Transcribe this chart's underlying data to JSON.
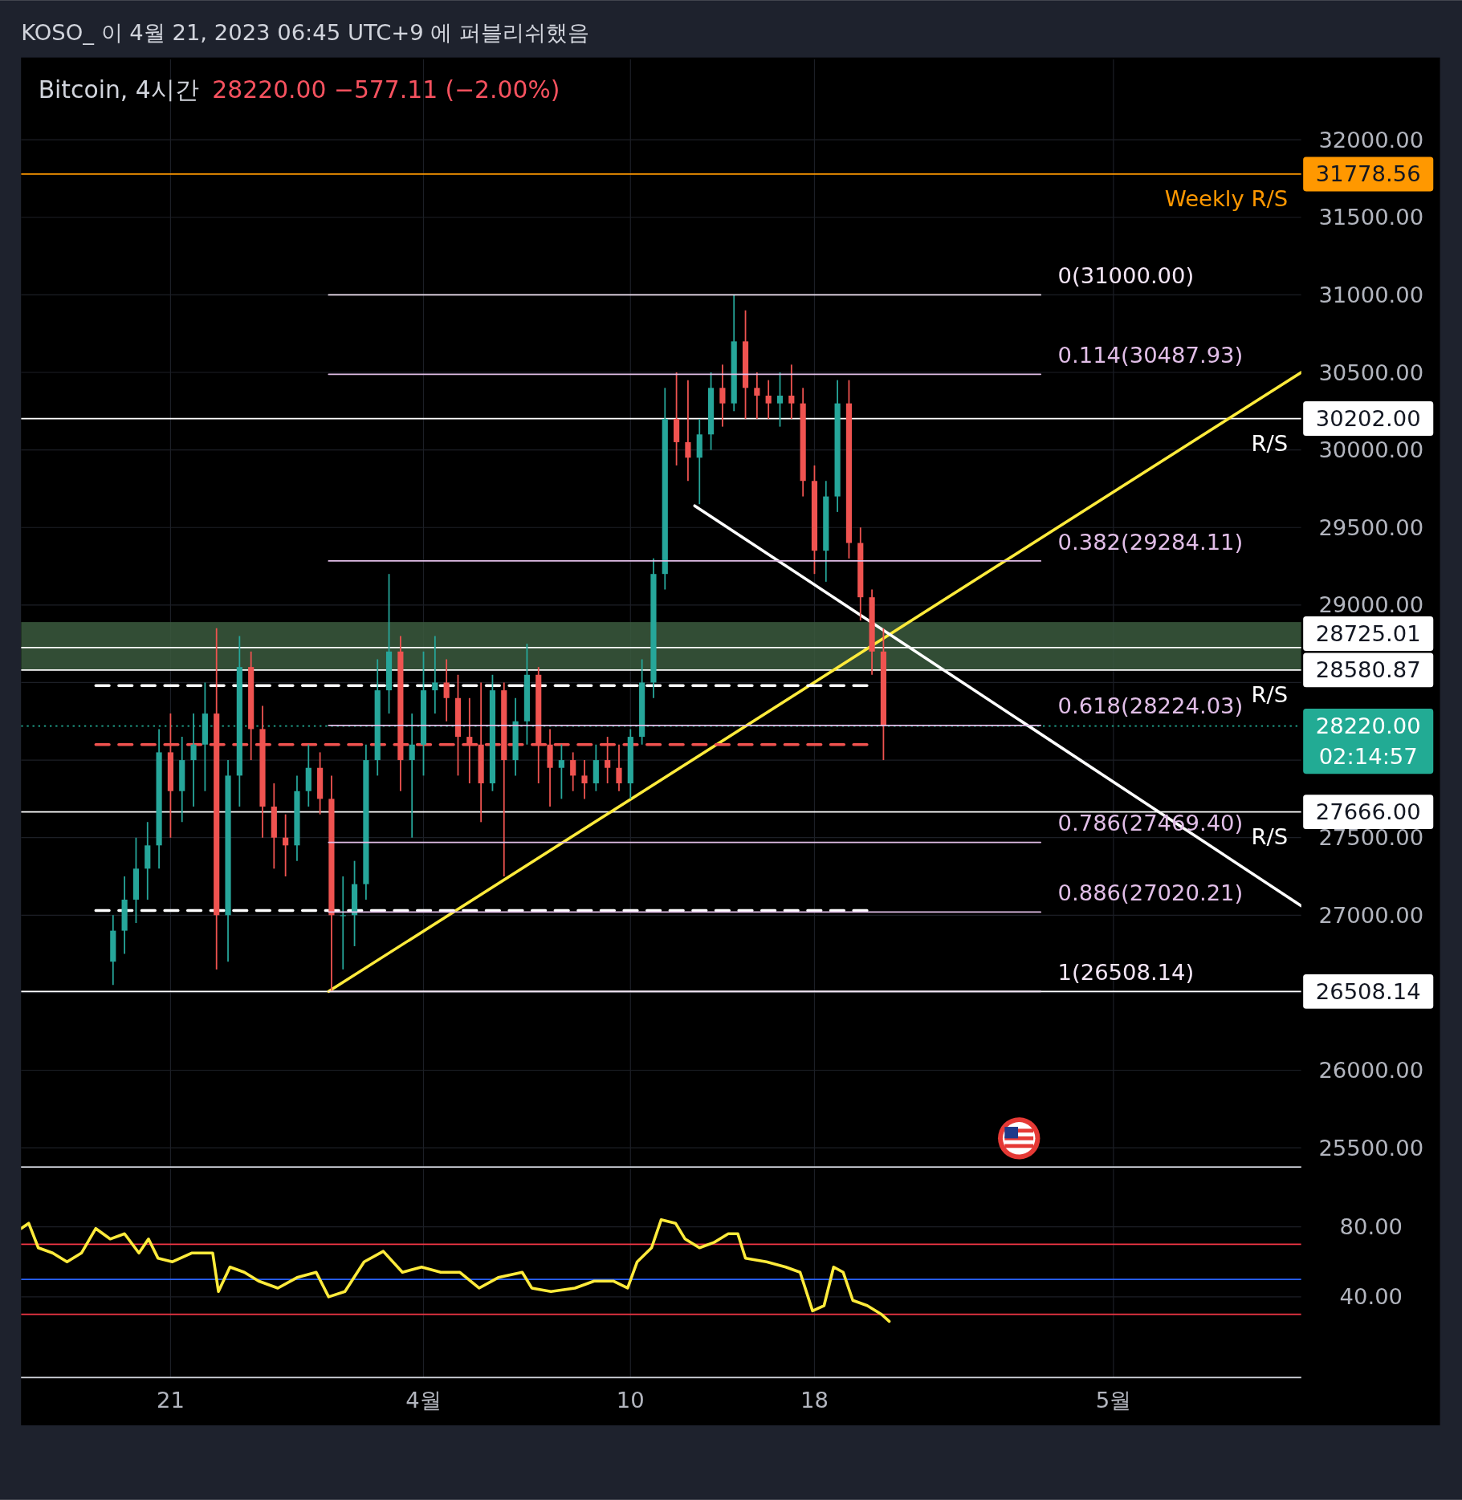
{
  "chart_data": [
    {
      "type": "candlestick",
      "title": "Bitcoin, 4시간",
      "subtitle": "28220.00  −577.11 (−2.00%)",
      "annotations": [
        "KOSO_ 이 4월 21, 2023 06:45 UTC+9 에 퍼블리쉬했음",
        {
          "text": "Weekly R/S",
          "x": "2023-05-08T14:00",
          "y": 31778.56
        },
        {
          "text": "R/S",
          "x": "2023-05-08T14:00",
          "y": 30202
        },
        {
          "text": "R/S",
          "x": "2023-05-08T14:00",
          "y": 28580.87
        },
        {
          "text": "R/S",
          "x": "2023-05-08T14:00",
          "y": 27666
        },
        "02:14:57"
      ],
      "x": [
        "2023-03-18T12:00",
        "2023-03-19T00:00",
        "2023-03-19T12:00",
        "2023-03-20T00:00",
        "2023-03-20T12:00",
        "2023-03-21T00:00",
        "2023-03-21T12:00",
        "2023-03-22T00:00",
        "2023-03-22T12:00",
        "2023-03-23T00:00",
        "2023-03-23T12:00",
        "2023-03-24T00:00",
        "2023-03-24T12:00",
        "2023-03-25T00:00",
        "2023-03-25T12:00",
        "2023-03-26T00:00",
        "2023-03-26T12:00",
        "2023-03-27T00:00",
        "2023-03-27T12:00",
        "2023-03-28T00:00",
        "2023-03-28T12:00",
        "2023-03-29T00:00",
        "2023-03-29T12:00",
        "2023-03-30T00:00",
        "2023-03-30T12:00",
        "2023-03-31T00:00",
        "2023-03-31T12:00",
        "2023-04-01T00:00",
        "2023-04-01T12:00",
        "2023-04-02T00:00",
        "2023-04-02T12:00",
        "2023-04-03T00:00",
        "2023-04-03T12:00",
        "2023-04-04T00:00",
        "2023-04-04T12:00",
        "2023-04-05T00:00",
        "2023-04-05T12:00",
        "2023-04-06T00:00",
        "2023-04-06T12:00",
        "2023-04-07T00:00",
        "2023-04-07T12:00",
        "2023-04-08T00:00",
        "2023-04-08T12:00",
        "2023-04-09T00:00",
        "2023-04-09T12:00",
        "2023-04-10T00:00",
        "2023-04-10T12:00",
        "2023-04-11T00:00",
        "2023-04-11T12:00",
        "2023-04-12T00:00",
        "2023-04-12T12:00",
        "2023-04-13T00:00",
        "2023-04-13T12:00",
        "2023-04-14T00:00",
        "2023-04-14T12:00",
        "2023-04-15T00:00",
        "2023-04-15T12:00",
        "2023-04-16T00:00",
        "2023-04-16T12:00",
        "2023-04-17T00:00",
        "2023-04-17T12:00",
        "2023-04-18T00:00",
        "2023-04-18T12:00",
        "2023-04-19T00:00",
        "2023-04-19T12:00",
        "2023-04-20T00:00",
        "2023-04-20T12:00",
        "2023-04-21T00:00"
      ],
      "ohlc": [
        [
          26700,
          27000,
          26550,
          26900
        ],
        [
          26900,
          27250,
          26750,
          27100
        ],
        [
          27100,
          27500,
          26950,
          27300
        ],
        [
          27300,
          27600,
          27100,
          27450
        ],
        [
          27450,
          28200,
          27300,
          28050
        ],
        [
          28050,
          28300,
          27500,
          27800
        ],
        [
          27800,
          28150,
          27600,
          28000
        ],
        [
          28000,
          28300,
          27700,
          28100
        ],
        [
          28100,
          28500,
          27800,
          28300
        ],
        [
          28300,
          28850,
          26650,
          27000
        ],
        [
          27000,
          28000,
          26700,
          27900
        ],
        [
          27900,
          28800,
          27700,
          28600
        ],
        [
          28600,
          28700,
          28000,
          28200
        ],
        [
          28200,
          28350,
          27500,
          27700
        ],
        [
          27700,
          27850,
          27300,
          27500
        ],
        [
          27500,
          27650,
          27250,
          27450
        ],
        [
          27450,
          27900,
          27350,
          27800
        ],
        [
          27800,
          28100,
          27700,
          27950
        ],
        [
          27950,
          28050,
          27650,
          27750
        ],
        [
          27750,
          27900,
          26508,
          27000
        ],
        [
          27000,
          27250,
          26650,
          27000
        ],
        [
          27000,
          27350,
          26800,
          27200
        ],
        [
          27200,
          28100,
          27100,
          28000
        ],
        [
          28000,
          28650,
          27900,
          28450
        ],
        [
          28450,
          29200,
          28300,
          28700
        ],
        [
          28700,
          28800,
          27800,
          28000
        ],
        [
          28000,
          28300,
          27500,
          28100
        ],
        [
          28100,
          28700,
          27900,
          28450
        ],
        [
          28450,
          28800,
          28300,
          28500
        ],
        [
          28500,
          28650,
          28250,
          28400
        ],
        [
          28400,
          28550,
          27900,
          28150
        ],
        [
          28150,
          28400,
          27850,
          28100
        ],
        [
          28100,
          28500,
          27600,
          27850
        ],
        [
          27850,
          28550,
          27800,
          28450
        ],
        [
          28450,
          28500,
          27250,
          28000
        ],
        [
          28000,
          28400,
          27900,
          28250
        ],
        [
          28250,
          28750,
          28100,
          28550
        ],
        [
          28550,
          28600,
          27850,
          28100
        ],
        [
          28100,
          28200,
          27700,
          27950
        ],
        [
          27950,
          28100,
          27750,
          28000
        ],
        [
          28000,
          28050,
          27800,
          27900
        ],
        [
          27900,
          28000,
          27750,
          27850
        ],
        [
          27850,
          28100,
          27800,
          28000
        ],
        [
          28000,
          28150,
          27850,
          27950
        ],
        [
          27950,
          28100,
          27800,
          27850
        ],
        [
          27850,
          28200,
          27750,
          28150
        ],
        [
          28150,
          28650,
          28100,
          28500
        ],
        [
          28500,
          29300,
          28400,
          29200
        ],
        [
          29200,
          30400,
          29100,
          30200
        ],
        [
          30200,
          30500,
          29900,
          30050
        ],
        [
          30050,
          30450,
          29800,
          29950
        ],
        [
          29950,
          30200,
          29650,
          30100
        ],
        [
          30100,
          30500,
          30000,
          30400
        ],
        [
          30400,
          30550,
          30150,
          30300
        ],
        [
          30300,
          31000,
          30250,
          30700
        ],
        [
          30700,
          30900,
          30200,
          30400
        ],
        [
          30400,
          30500,
          30200,
          30350
        ],
        [
          30350,
          30450,
          30200,
          30300
        ],
        [
          30300,
          30500,
          30150,
          30350
        ],
        [
          30350,
          30550,
          30200,
          30300
        ],
        [
          30300,
          30400,
          29700,
          29800
        ],
        [
          29800,
          29900,
          29200,
          29350
        ],
        [
          29350,
          29800,
          29150,
          29700
        ],
        [
          29700,
          30450,
          29600,
          30300
        ],
        [
          30300,
          30450,
          29300,
          29400
        ],
        [
          29400,
          29500,
          28900,
          29050
        ],
        [
          29050,
          29100,
          28550,
          28700
        ],
        [
          28700,
          28850,
          28000,
          28220
        ]
      ],
      "series": [
        {
          "type": "line",
          "name": "0(31000.00)",
          "color": "#f3e5f5",
          "x": [
            "2023-03-27T21:00",
            "2023-04-27T20:00"
          ],
          "values": [
            31000,
            31000
          ]
        },
        {
          "type": "line",
          "name": "0.114(30487.93)",
          "color": "#e1bee7",
          "x": [
            "2023-03-27T21:00",
            "2023-04-27T20:00"
          ],
          "values": [
            30487.93,
            30487.93
          ]
        },
        {
          "type": "line",
          "name": "0.382(29284.11)",
          "color": "#e1bee7",
          "x": [
            "2023-03-27T21:00",
            "2023-04-27T20:00"
          ],
          "values": [
            29284.11,
            29284.11
          ]
        },
        {
          "type": "line",
          "name": "0.618(28224.03)",
          "color": "#e1bee7",
          "x": [
            "2023-03-27T21:00",
            "2023-04-27T20:00"
          ],
          "values": [
            28224.03,
            28224.03
          ]
        },
        {
          "type": "line",
          "name": "0.786(27469.40)",
          "color": "#e1bee7",
          "x": [
            "2023-03-27T21:00",
            "2023-04-27T20:00"
          ],
          "values": [
            27469.4,
            27469.4
          ]
        },
        {
          "type": "line",
          "name": "0.886(27020.21)",
          "color": "#e1bee7",
          "x": [
            "2023-03-27T21:00",
            "2023-04-27T20:00"
          ],
          "values": [
            27020.21,
            27020.21
          ]
        },
        {
          "type": "line",
          "name": "1(26508.14)",
          "color": "#f3e5f5",
          "x": [
            "2023-03-27T21:00",
            "2023-04-27T20:00"
          ],
          "values": [
            26508.14,
            26508.14
          ]
        },
        {
          "type": "line",
          "color": "#ffeb3b",
          "x": [
            "2023-03-27T21:00",
            "2023-05-09T04:00"
          ],
          "values": [
            26508.14,
            30500
          ]
        },
        {
          "type": "line",
          "color": "#ffffff",
          "x": [
            "2023-04-12T19:00",
            "2023-05-09T04:00"
          ],
          "values": [
            29640,
            27060
          ]
        },
        {
          "type": "line",
          "color": "#ffffff",
          "line_style": "dashed",
          "x": [
            "2023-03-17T18:00",
            "2023-04-20T07:00"
          ],
          "values": [
            28480,
            28480
          ]
        },
        {
          "type": "line",
          "color": "#f0524f",
          "line_style": "dashed",
          "x": [
            "2023-03-17T18:00",
            "2023-04-20T07:00"
          ],
          "values": [
            28100,
            28100
          ]
        },
        {
          "type": "line",
          "color": "#ffffff",
          "line_style": "dashed",
          "x": [
            "2023-03-17T18:00",
            "2023-04-20T07:00"
          ],
          "values": [
            27030,
            27030
          ]
        }
      ],
      "ref_lines": [
        {
          "axis": "y",
          "value": 31778.56,
          "label": "31778.56",
          "color": "#ff9800"
        },
        {
          "axis": "y",
          "value": 30202,
          "label": "30202.00",
          "color": "#ffffff"
        },
        {
          "axis": "y",
          "value": 28725.01,
          "label": "28725.01",
          "color": "#ffffff"
        },
        {
          "axis": "y",
          "value": 28580.87,
          "label": "28580.87",
          "color": "#ffffff"
        },
        {
          "axis": "y",
          "value": 28220,
          "label": "28220.00",
          "color": "#22ab94",
          "line_style": "dotted"
        },
        {
          "axis": "y",
          "value": 27666,
          "label": "27666.00",
          "color": "#ffffff"
        },
        {
          "axis": "y",
          "value": 26508.14,
          "label": "26508.14",
          "color": "#ffffff"
        }
      ],
      "bands": [
        {
          "axis": "y",
          "from": 28580.87,
          "to": 28890,
          "color": "#3b5a3e"
        }
      ],
      "xlim": [
        "2023-03-14T12:00",
        "2023-05-09T04:00"
      ],
      "xticks": [
        {
          "value": "2023-03-21",
          "label": null
        },
        {
          "value": "2023-04-01",
          "label": null
        },
        {
          "value": "2023-04-10",
          "label": null
        },
        {
          "value": "2023-04-18",
          "label": null
        },
        {
          "value": "2023-05-01",
          "label": null
        }
      ],
      "ylim": [
        25376,
        32518
      ],
      "yticks": [
        {
          "value": 25500,
          "label": "25500.00"
        },
        {
          "value": 26000,
          "label": "26000.00"
        },
        {
          "value": 26500,
          "label": null
        },
        {
          "value": 27000,
          "label": "27000.00"
        },
        {
          "value": 27500,
          "label": "27500.00"
        },
        {
          "value": 28000,
          "label": null
        },
        {
          "value": 28500,
          "label": null
        },
        {
          "value": 29000,
          "label": "29000.00"
        },
        {
          "value": 29500,
          "label": "29500.00"
        },
        {
          "value": 30000,
          "label": "30000.00"
        },
        {
          "value": 30500,
          "label": "30500.00"
        },
        {
          "value": 31000,
          "label": "31000.00"
        },
        {
          "value": 31500,
          "label": "31500.00"
        },
        {
          "value": 32000,
          "label": "32000.00"
        }
      ],
      "grid": true,
      "tick_labels": "y"
    },
    {
      "type": "line",
      "series": [
        {
          "color": "#ffeb3b",
          "x": [
            "2023-03-14T12:00",
            "2023-03-14T20:00",
            "2023-03-15T06:00",
            "2023-03-15T21:00",
            "2023-03-16T12:00",
            "2023-03-17T03:00",
            "2023-03-17T18:00",
            "2023-03-18T09:00",
            "2023-03-19T00:00",
            "2023-03-19T15:00",
            "2023-03-20T01:00",
            "2023-03-20T11:00",
            "2023-03-21T02:00",
            "2023-03-21T22:00",
            "2023-03-22T20:00",
            "2023-03-23T02:00",
            "2023-03-23T14:00",
            "2023-03-24T05:00",
            "2023-03-24T20:00",
            "2023-03-25T16:00",
            "2023-03-26T12:00",
            "2023-03-27T08:00",
            "2023-03-27T21:00",
            "2023-03-28T14:00",
            "2023-03-29T10:00",
            "2023-03-30T06:00",
            "2023-03-31T02:00",
            "2023-03-31T22:00",
            "2023-04-01T18:00",
            "2023-04-02T14:00",
            "2023-04-03T10:00",
            "2023-04-04T06:00",
            "2023-04-05T07:00",
            "2023-04-05T17:00",
            "2023-04-06T13:00",
            "2023-04-07T14:00",
            "2023-04-08T10:00",
            "2023-04-09T06:00",
            "2023-04-09T21:00",
            "2023-04-10T07:00",
            "2023-04-10T22:00",
            "2023-04-11T08:00",
            "2023-04-11T23:00",
            "2023-04-12T09:00",
            "2023-04-13T00:00",
            "2023-04-13T15:00",
            "2023-04-14T06:00",
            "2023-04-14T16:00",
            "2023-04-15T00:00",
            "2023-04-15T22:00",
            "2023-04-16T18:00",
            "2023-04-17T09:00",
            "2023-04-17T22:00",
            "2023-04-18T10:00",
            "2023-04-18T20:00",
            "2023-04-19T06:00",
            "2023-04-19T16:00",
            "2023-04-20T07:00",
            "2023-04-20T22:00",
            "2023-04-21T06:00"
          ],
          "values": [
            79,
            82,
            68,
            65,
            60,
            65,
            79,
            73,
            76,
            65,
            73,
            62,
            60,
            65,
            65,
            43,
            57,
            54,
            49,
            45,
            51,
            54,
            40,
            43,
            60,
            66,
            54,
            57,
            54,
            54,
            45,
            51,
            54,
            45,
            43,
            45,
            49,
            49,
            45,
            60,
            68,
            84,
            82,
            73,
            68,
            71,
            76,
            76,
            62,
            60,
            57,
            54,
            32,
            35,
            57,
            54,
            38,
            35,
            30,
            26
          ]
        }
      ],
      "ref_lines": [
        {
          "axis": "y",
          "value": 70,
          "color": "#f23645"
        },
        {
          "axis": "y",
          "value": 50,
          "color": "#2962ff"
        },
        {
          "axis": "y",
          "value": 30,
          "color": "#f23645"
        }
      ],
      "xlim": [
        "2023-03-14T12:00",
        "2023-05-09T04:00"
      ],
      "xticks": [
        {
          "value": "2023-03-21",
          "label": "21"
        },
        {
          "value": "2023-04-01",
          "label": "4월"
        },
        {
          "value": "2023-04-10",
          "label": "10"
        },
        {
          "value": "2023-04-18",
          "label": "18"
        },
        {
          "value": "2023-05-01",
          "label": "5월"
        }
      ],
      "ylim": [
        -6,
        113
      ],
      "yticks": [
        {
          "value": 40,
          "label": "40.00"
        },
        {
          "value": 80,
          "label": "80.00"
        }
      ],
      "grid": true
    }
  ]
}
